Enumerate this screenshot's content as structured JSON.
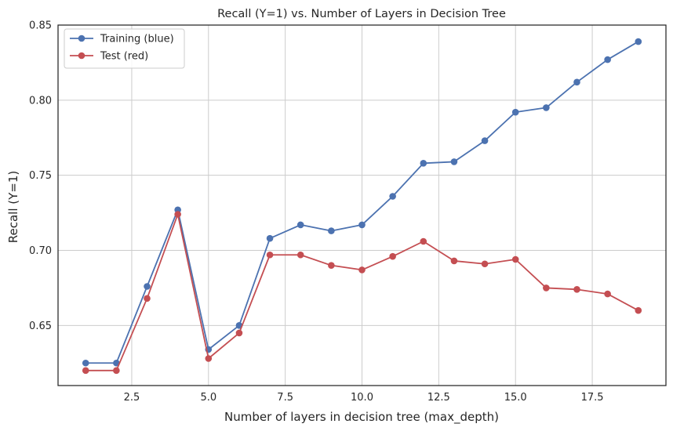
{
  "chart_data": {
    "type": "line",
    "title": "Recall (Y=1) vs. Number of Layers in Decision Tree",
    "xlabel": "Number of layers in decision tree (max_depth)",
    "ylabel": "Recall (Y=1)",
    "xlim": [
      0.1,
      19.9
    ],
    "ylim": [
      0.61,
      0.85
    ],
    "xticks": [
      2.5,
      5.0,
      7.5,
      10.0,
      12.5,
      15.0,
      17.5
    ],
    "xtick_labels": [
      "2.5",
      "5.0",
      "7.5",
      "10.0",
      "12.5",
      "15.0",
      "17.5"
    ],
    "yticks": [
      0.65,
      0.7,
      0.75,
      0.8,
      0.85
    ],
    "ytick_labels": [
      "0.65",
      "0.70",
      "0.75",
      "0.80",
      "0.85"
    ],
    "grid": true,
    "legend_position": "top-left",
    "x": [
      1,
      2,
      3,
      4,
      5,
      6,
      7,
      8,
      9,
      10,
      11,
      12,
      13,
      14,
      15,
      16,
      17,
      18,
      19
    ],
    "series": [
      {
        "name": "Training (blue)",
        "color": "#4c72b0",
        "marker": "circle",
        "values": [
          0.625,
          0.625,
          0.676,
          0.727,
          0.634,
          0.65,
          0.708,
          0.717,
          0.713,
          0.717,
          0.736,
          0.758,
          0.759,
          0.773,
          0.792,
          0.795,
          0.812,
          0.827,
          0.839
        ]
      },
      {
        "name": "Test (red)",
        "color": "#c44e52",
        "marker": "circle",
        "values": [
          0.62,
          0.62,
          0.668,
          0.724,
          0.628,
          0.645,
          0.697,
          0.697,
          0.69,
          0.687,
          0.696,
          0.706,
          0.693,
          0.691,
          0.694,
          0.675,
          0.674,
          0.671,
          0.66
        ]
      }
    ]
  }
}
